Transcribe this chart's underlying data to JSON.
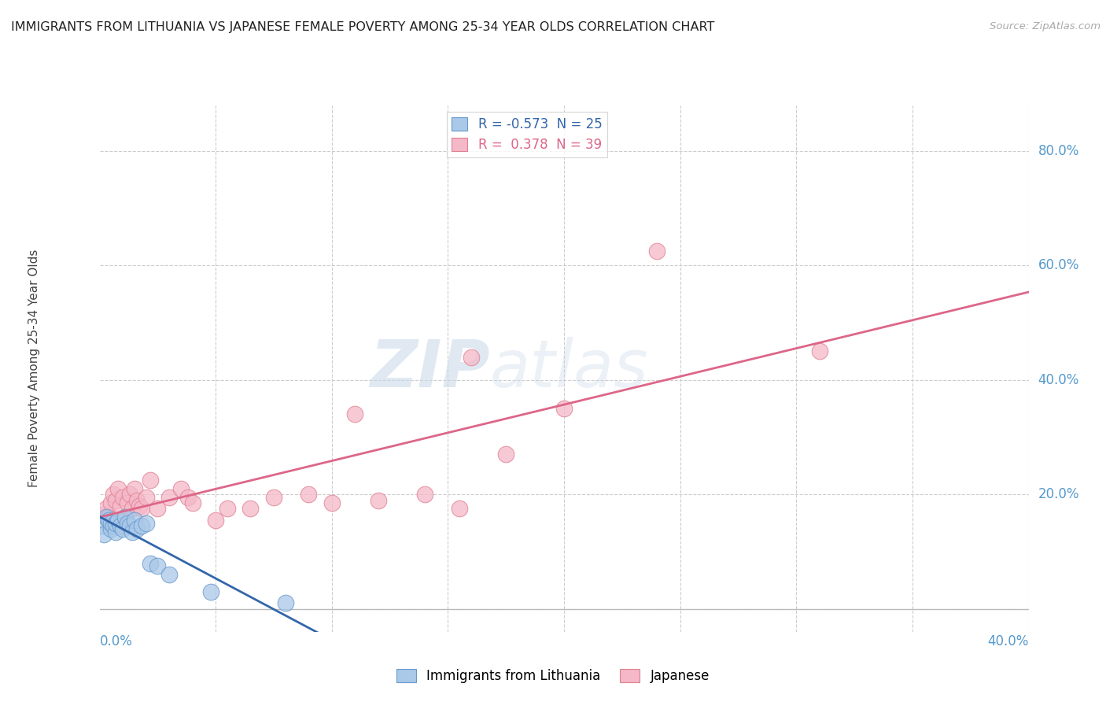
{
  "title": "IMMIGRANTS FROM LITHUANIA VS JAPANESE FEMALE POVERTY AMONG 25-34 YEAR OLDS CORRELATION CHART",
  "source": "Source: ZipAtlas.com",
  "ylabel": "Female Poverty Among 25-34 Year Olds",
  "xlim": [
    0.0,
    0.4
  ],
  "ylim": [
    -0.04,
    0.88
  ],
  "ytick_vals": [
    0.0,
    0.2,
    0.4,
    0.6,
    0.8
  ],
  "xtick_vals": [
    0.0,
    0.05,
    0.1,
    0.15,
    0.2,
    0.25,
    0.3,
    0.35,
    0.4
  ],
  "blue_R": -0.573,
  "blue_N": 25,
  "pink_R": 0.378,
  "pink_N": 39,
  "blue_label": "Immigrants from Lithuania",
  "pink_label": "Japanese",
  "watermark_zip": "ZIP",
  "watermark_atlas": "atlas",
  "background_color": "#ffffff",
  "grid_color": "#cccccc",
  "blue_color": "#aac8e8",
  "blue_edge_color": "#6699cc",
  "blue_line_color": "#3366aa",
  "pink_color": "#f4b8c8",
  "pink_edge_color": "#e08090",
  "pink_line_color": "#dd6688",
  "tick_label_color": "#5599cc",
  "title_color": "#222222",
  "source_color": "#aaaaaa",
  "ylabel_color": "#444444",
  "blue_points_x": [
    0.001,
    0.002,
    0.003,
    0.004,
    0.005,
    0.005,
    0.006,
    0.007,
    0.007,
    0.008,
    0.009,
    0.01,
    0.011,
    0.012,
    0.013,
    0.014,
    0.015,
    0.016,
    0.018,
    0.02,
    0.022,
    0.025,
    0.03,
    0.048,
    0.08
  ],
  "blue_points_y": [
    0.145,
    0.13,
    0.16,
    0.155,
    0.14,
    0.15,
    0.145,
    0.135,
    0.15,
    0.155,
    0.145,
    0.14,
    0.16,
    0.15,
    0.145,
    0.135,
    0.155,
    0.14,
    0.145,
    0.15,
    0.08,
    0.075,
    0.06,
    0.03,
    0.01
  ],
  "pink_points_x": [
    0.002,
    0.003,
    0.004,
    0.005,
    0.006,
    0.007,
    0.008,
    0.009,
    0.01,
    0.011,
    0.012,
    0.013,
    0.014,
    0.015,
    0.016,
    0.017,
    0.018,
    0.02,
    0.022,
    0.025,
    0.03,
    0.035,
    0.038,
    0.04,
    0.05,
    0.055,
    0.065,
    0.075,
    0.09,
    0.1,
    0.11,
    0.12,
    0.14,
    0.155,
    0.16,
    0.175,
    0.2,
    0.24,
    0.31
  ],
  "pink_points_y": [
    0.165,
    0.175,
    0.16,
    0.185,
    0.2,
    0.19,
    0.21,
    0.18,
    0.195,
    0.16,
    0.185,
    0.2,
    0.175,
    0.21,
    0.19,
    0.18,
    0.175,
    0.195,
    0.225,
    0.175,
    0.195,
    0.21,
    0.195,
    0.185,
    0.155,
    0.175,
    0.175,
    0.195,
    0.2,
    0.185,
    0.34,
    0.19,
    0.2,
    0.175,
    0.44,
    0.27,
    0.35,
    0.625,
    0.45
  ]
}
